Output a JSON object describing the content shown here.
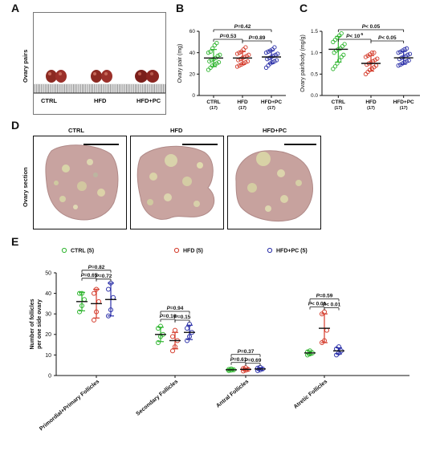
{
  "panels": {
    "a": {
      "letter": "A",
      "ylabel": "Ovary pairs",
      "groups": [
        "CTRL",
        "HFD",
        "HFD+PC"
      ]
    },
    "b": {
      "letter": "B"
    },
    "c": {
      "letter": "C"
    },
    "d": {
      "letter": "D",
      "ylabel": "Ovary section",
      "groups": [
        "CTRL",
        "HFD",
        "HFD+PC"
      ]
    },
    "e": {
      "letter": "E"
    }
  },
  "chart_data": [
    {
      "type": "scatter",
      "id": "B",
      "ylabel": "Ovary pair (mg)",
      "ylim": [
        0,
        60
      ],
      "yticks": [
        0,
        20,
        40,
        60
      ],
      "categories": [
        "CTRL",
        "HFD",
        "HFD+PC"
      ],
      "n_labels": [
        "(17)",
        "(17)",
        "(17)"
      ],
      "colors": [
        "#2fb52f",
        "#d43a2a",
        "#2a2fa8"
      ],
      "means": [
        35,
        35,
        36
      ],
      "sd": [
        8,
        6,
        6
      ],
      "points": [
        [
          24,
          26,
          28,
          29,
          30,
          31,
          32,
          33,
          34,
          35,
          37,
          38,
          40,
          41,
          44,
          47,
          49
        ],
        [
          27,
          28,
          29,
          30,
          31,
          32,
          33,
          34,
          35,
          36,
          37,
          38,
          39,
          40,
          41,
          43,
          45
        ],
        [
          26,
          28,
          30,
          31,
          32,
          33,
          34,
          35,
          36,
          37,
          38,
          39,
          40,
          41,
          42,
          43,
          45
        ]
      ],
      "annotations": [
        {
          "text": "P=0.42",
          "from": 0,
          "to": 2
        },
        {
          "text": "P=0.53",
          "from": 0,
          "to": 1
        },
        {
          "text": "P=0.89",
          "from": 1,
          "to": 2
        }
      ]
    },
    {
      "type": "scatter",
      "id": "C",
      "ylabel": "Ovary pair/body (mg/g)",
      "ylim": [
        0,
        1.5
      ],
      "yticks": [
        0.0,
        0.5,
        1.0,
        1.5
      ],
      "categories": [
        "CTRL",
        "HFD",
        "HFD+PC"
      ],
      "n_labels": [
        "(17)",
        "(17)",
        "(17)"
      ],
      "colors": [
        "#2fb52f",
        "#d43a2a",
        "#2a2fa8"
      ],
      "means": [
        1.08,
        0.75,
        0.88
      ],
      "sd": [
        0.3,
        0.18,
        0.15
      ],
      "points": [
        [
          0.62,
          0.68,
          0.75,
          0.82,
          0.9,
          0.95,
          1.0,
          1.05,
          1.08,
          1.1,
          1.15,
          1.2,
          1.25,
          1.3,
          1.35,
          1.4,
          1.45
        ],
        [
          0.5,
          0.55,
          0.6,
          0.63,
          0.66,
          0.7,
          0.72,
          0.75,
          0.77,
          0.8,
          0.83,
          0.86,
          0.9,
          0.93,
          0.96,
          1.0,
          1.0
        ],
        [
          0.7,
          0.72,
          0.75,
          0.78,
          0.8,
          0.82,
          0.85,
          0.88,
          0.9,
          0.92,
          0.95,
          0.97,
          1.0,
          1.02,
          1.05,
          1.08,
          1.1
        ]
      ],
      "annotations": [
        {
          "text": "P< 0.05",
          "from": 0,
          "to": 2
        },
        {
          "text": "P< 10",
          "sup": "-5",
          "from": 0,
          "to": 1
        },
        {
          "text": "P< 0.05",
          "from": 1,
          "to": 2
        }
      ]
    },
    {
      "type": "scatter",
      "id": "E",
      "ylabel": "Number of follicles per one side ovary",
      "ylabel_lines": [
        "Number of follicles",
        "per one side ovary"
      ],
      "ylim": [
        0,
        50
      ],
      "yticks": [
        0,
        10,
        20,
        30,
        40,
        50
      ],
      "categories": [
        "Primordial+Primary Follicles",
        "Secondary Follicles",
        "Antral Follicles",
        "Atretic Follicles"
      ],
      "series": [
        {
          "name": "CTRL (5)",
          "color": "#2fb52f"
        },
        {
          "name": "HFD (5)",
          "color": "#d43a2a"
        },
        {
          "name": "HFD+PC (5)",
          "color": "#2a2fa8"
        }
      ],
      "groups": [
        {
          "means": [
            36,
            35,
            37
          ],
          "sd": [
            4.5,
            7,
            8
          ],
          "points": [
            [
              31,
              34,
              37,
              40,
              40
            ],
            [
              27,
              31,
              36,
              40,
              42
            ],
            [
              29,
              32,
              38,
              42,
              45
            ]
          ],
          "annotations": [
            {
              "text": "P=0.82",
              "from": 0,
              "to": 2
            },
            {
              "text": "P=0.65",
              "from": 0,
              "to": 1
            },
            {
              "text": "P=0.72",
              "from": 1,
              "to": 2
            }
          ]
        },
        {
          "means": [
            20,
            17,
            21
          ],
          "sd": [
            3.5,
            4,
            3.5
          ],
          "points": [
            [
              16,
              19,
              20,
              23,
              24
            ],
            [
              12,
              14,
              17,
              19,
              22
            ],
            [
              17,
              19,
              21,
              23,
              25
            ]
          ],
          "annotations": [
            {
              "text": "P=0.94",
              "from": 0,
              "to": 2
            },
            {
              "text": "P=0.16",
              "from": 0,
              "to": 1
            },
            {
              "text": "P=0.15",
              "from": 1,
              "to": 2
            }
          ]
        },
        {
          "means": [
            2.8,
            3.0,
            3.2
          ],
          "sd": [
            0.4,
            0.6,
            0.6
          ],
          "points": [
            [
              2.4,
              2.6,
              2.8,
              3.0,
              3.2
            ],
            [
              2.2,
              2.6,
              3.0,
              3.4,
              3.8
            ],
            [
              2.4,
              2.8,
              3.2,
              3.6,
              4.0
            ]
          ],
          "annotations": [
            {
              "text": "P=0.37",
              "from": 0,
              "to": 2
            },
            {
              "text": "P=0.61",
              "from": 0,
              "to": 1
            },
            {
              "text": "P=0.69",
              "from": 1,
              "to": 2
            }
          ]
        },
        {
          "means": [
            11,
            23,
            12
          ],
          "sd": [
            1,
            7,
            1.5
          ],
          "points": [
            [
              10,
              10.5,
              11,
              11.5,
              12
            ],
            [
              16,
              17,
              22,
              30,
              31
            ],
            [
              10,
              11,
              12,
              13,
              14
            ]
          ],
          "annotations": [
            {
              "text": "P=0.59",
              "from": 0,
              "to": 2
            },
            {
              "text": "P< 0.01",
              "from": 0,
              "to": 1
            },
            {
              "text": "P< 0.01",
              "from": 1,
              "to": 2
            }
          ]
        }
      ]
    }
  ]
}
